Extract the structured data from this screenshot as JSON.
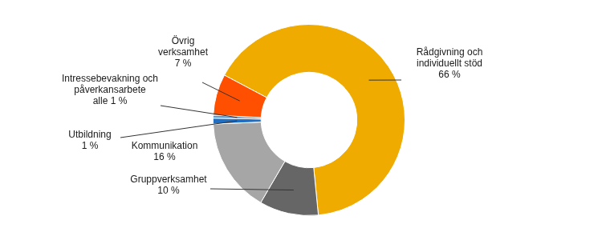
{
  "chart_data": {
    "type": "doughnut",
    "categories": [
      "Rådgivning och individuellt stöd",
      "Gruppverksamhet",
      "Kommunikation",
      "Utbildning",
      "Intressebevakning och påverkansarbete",
      "Övrig verksamhet"
    ],
    "values": [
      66,
      10,
      16,
      1,
      0.5,
      7
    ],
    "value_labels": [
      "66 %",
      "10 %",
      "16 %",
      "1 %",
      "alle 1 %",
      "7 %"
    ],
    "colors": [
      "#f0ab00",
      "#666666",
      "#a6a6a6",
      "#1f6fc5",
      "#5b9bd5",
      "#fe5000"
    ],
    "data_labels": true,
    "legend": false
  }
}
